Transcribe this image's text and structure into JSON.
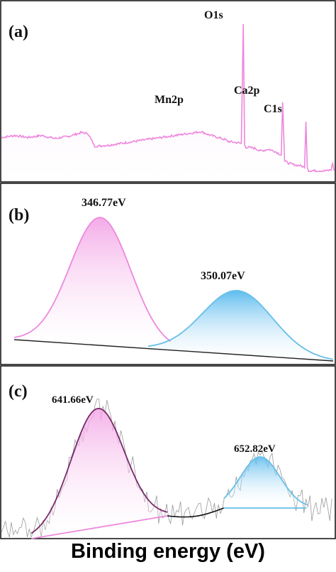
{
  "figure": {
    "xlabel": "Binding energy (eV)"
  },
  "colors": {
    "pink": "#ee88dd",
    "pink_fill": "#f8c6ee",
    "blue": "#66bfe8",
    "blue_fill": "#7ccaf0",
    "dark_purple": "#7a2a6a",
    "noise_gray": "#9a9a9a",
    "black": "#111111"
  },
  "chart_data": [
    {
      "panel": "(a)",
      "type": "line",
      "title": "",
      "xlabel": "",
      "ylabel": "",
      "grid": false,
      "annotations": [
        "Mn2p",
        "O1s",
        "Ca2p",
        "C1s"
      ],
      "series": [
        {
          "x": [
            0,
            4,
            8,
            12,
            16,
            20,
            24,
            26,
            28,
            32,
            36,
            40,
            44,
            48,
            52,
            56,
            60,
            62,
            64,
            65,
            66,
            67,
            68,
            70,
            72,
            72.6,
            73,
            73.4,
            74,
            76,
            78,
            80,
            82,
            84,
            84.4,
            85,
            86,
            88,
            90,
            91,
            91.4,
            91.8,
            92.2,
            94,
            96,
            98,
            99,
            99.4,
            99.8,
            100
          ],
          "values": [
            84,
            86,
            84,
            86,
            83,
            85,
            89,
            88,
            75,
            76,
            78,
            80,
            82,
            84,
            86,
            88,
            90,
            87,
            85,
            84,
            83,
            82,
            80,
            79,
            78,
            200,
            76,
            74,
            74,
            73,
            70,
            72,
            70,
            66,
            120,
            60,
            58,
            56,
            55,
            53,
            100,
            54,
            50,
            50,
            50,
            50,
            51,
            58,
            51,
            50
          ]
        }
      ],
      "ylim": [
        40,
        210
      ]
    },
    {
      "panel": "(b)",
      "type": "area",
      "title": "",
      "xlabel": "",
      "ylabel": "",
      "grid": false,
      "xlim": [
        0,
        100
      ],
      "ylim": [
        0,
        100
      ],
      "series": [
        {
          "peak_label": "346.77eV",
          "center": 27,
          "sigma": 9.5,
          "height": 100,
          "x_start": 0,
          "x_end": 49,
          "color": "pink"
        },
        {
          "peak_label": "350.07eV",
          "center": 70,
          "sigma": 11,
          "height": 50,
          "x_start": 42,
          "x_end": 100,
          "color": "blue"
        }
      ]
    },
    {
      "panel": "(c)",
      "type": "area",
      "title": "",
      "xlabel": "",
      "ylabel": "",
      "grid": false,
      "xlim": [
        0,
        100
      ],
      "ylim": [
        0,
        100
      ],
      "series": [
        {
          "peak_label": "641.66eV",
          "center": 29,
          "sigma": 8,
          "height": 100,
          "x_start": 9,
          "x_end": 50,
          "color": "pink"
        },
        {
          "peak_label": "652.82eV",
          "center": 78,
          "sigma": 6,
          "height": 45,
          "x_start": 67,
          "x_end": 92,
          "color": "blue"
        }
      ]
    }
  ]
}
